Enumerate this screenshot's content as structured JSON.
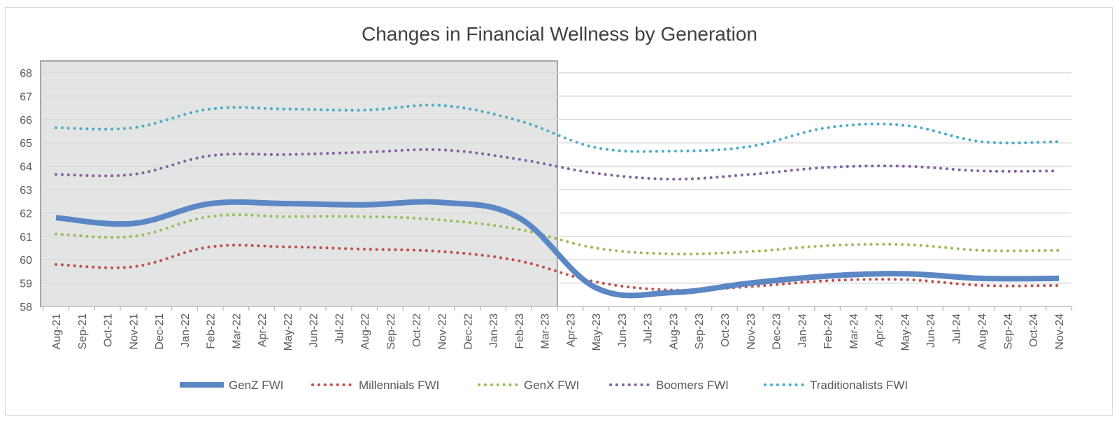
{
  "chart_data": {
    "type": "line",
    "title": "Changes in Financial Wellness by Generation",
    "xlabel": "",
    "ylabel": "",
    "ylim": [
      58,
      68
    ],
    "yticks": [
      58,
      59,
      60,
      61,
      62,
      63,
      64,
      65,
      66,
      67,
      68
    ],
    "grid": true,
    "legend_position": "bottom",
    "shaded_region": {
      "from": "Aug-21",
      "to": "Mar-23",
      "color": "#e3e5e4"
    },
    "categories": [
      "Aug-21",
      "Sep-21",
      "Oct-21",
      "Nov-21",
      "Dec-21",
      "Jan-22",
      "Feb-22",
      "Mar-22",
      "Apr-22",
      "May-22",
      "Jun-22",
      "Jul-22",
      "Aug-22",
      "Sep-22",
      "Oct-22",
      "Nov-22",
      "Dec-22",
      "Jan-23",
      "Feb-23",
      "Mar-23",
      "Apr-23",
      "May-23",
      "Jun-23",
      "Jul-23",
      "Aug-23",
      "Sep-23",
      "Oct-23",
      "Nov-23",
      "Dec-23",
      "Jan-24",
      "Feb-24",
      "Mar-24",
      "Apr-24",
      "May-24",
      "Jun-24",
      "Jul-24",
      "Aug-24",
      "Sep-24",
      "Oct-24",
      "Nov-24"
    ],
    "series": [
      {
        "name": "GenZ FWI",
        "color": "#5b87c5",
        "style": "solid",
        "points": [
          [
            "Aug-21",
            61.8
          ],
          [
            "Nov-21",
            61.55
          ],
          [
            "Feb-22",
            62.4
          ],
          [
            "May-22",
            62.4
          ],
          [
            "Aug-22",
            62.35
          ],
          [
            "Nov-22",
            62.45
          ],
          [
            "Feb-23",
            61.8
          ],
          [
            "May-23",
            58.8
          ],
          [
            "Aug-23",
            58.6
          ],
          [
            "Nov-23",
            59.0
          ],
          [
            "Feb-24",
            59.3
          ],
          [
            "May-24",
            59.4
          ],
          [
            "Aug-24",
            59.2
          ],
          [
            "Nov-24",
            59.2
          ]
        ]
      },
      {
        "name": "Millennials FWI",
        "color": "#c0504d",
        "style": "dotted",
        "points": [
          [
            "Aug-21",
            59.8
          ],
          [
            "Nov-21",
            59.7
          ],
          [
            "Feb-22",
            60.55
          ],
          [
            "May-22",
            60.55
          ],
          [
            "Aug-22",
            60.45
          ],
          [
            "Nov-22",
            60.35
          ],
          [
            "Feb-23",
            59.95
          ],
          [
            "May-23",
            59.05
          ],
          [
            "Aug-23",
            58.7
          ],
          [
            "Nov-23",
            58.85
          ],
          [
            "Feb-24",
            59.1
          ],
          [
            "May-24",
            59.15
          ],
          [
            "Aug-24",
            58.9
          ],
          [
            "Nov-24",
            58.9
          ]
        ]
      },
      {
        "name": "GenX FWI",
        "color": "#9bbb59",
        "style": "dotted",
        "points": [
          [
            "Aug-21",
            61.1
          ],
          [
            "Nov-21",
            61.0
          ],
          [
            "Feb-22",
            61.85
          ],
          [
            "May-22",
            61.85
          ],
          [
            "Aug-22",
            61.85
          ],
          [
            "Nov-22",
            61.7
          ],
          [
            "Feb-23",
            61.3
          ],
          [
            "May-23",
            60.5
          ],
          [
            "Aug-23",
            60.25
          ],
          [
            "Nov-23",
            60.35
          ],
          [
            "Feb-24",
            60.6
          ],
          [
            "May-24",
            60.65
          ],
          [
            "Aug-24",
            60.4
          ],
          [
            "Nov-24",
            60.4
          ]
        ]
      },
      {
        "name": "Boomers FWI",
        "color": "#8064a2",
        "style": "dotted",
        "points": [
          [
            "Aug-21",
            63.65
          ],
          [
            "Nov-21",
            63.65
          ],
          [
            "Feb-22",
            64.45
          ],
          [
            "May-22",
            64.5
          ],
          [
            "Aug-22",
            64.6
          ],
          [
            "Nov-22",
            64.7
          ],
          [
            "Feb-23",
            64.3
          ],
          [
            "May-23",
            63.7
          ],
          [
            "Aug-23",
            63.45
          ],
          [
            "Nov-23",
            63.65
          ],
          [
            "Feb-24",
            63.95
          ],
          [
            "May-24",
            64.0
          ],
          [
            "Aug-24",
            63.8
          ],
          [
            "Nov-24",
            63.8
          ]
        ]
      },
      {
        "name": "Traditionalists FWI",
        "color": "#4bacc6",
        "style": "dotted",
        "points": [
          [
            "Aug-21",
            65.65
          ],
          [
            "Nov-21",
            65.65
          ],
          [
            "Feb-22",
            66.45
          ],
          [
            "May-22",
            66.45
          ],
          [
            "Aug-22",
            66.4
          ],
          [
            "Nov-22",
            66.6
          ],
          [
            "Feb-23",
            65.95
          ],
          [
            "May-23",
            64.8
          ],
          [
            "Aug-23",
            64.65
          ],
          [
            "Nov-23",
            64.85
          ],
          [
            "Feb-24",
            65.65
          ],
          [
            "May-24",
            65.75
          ],
          [
            "Aug-24",
            65.05
          ],
          [
            "Nov-24",
            65.05
          ]
        ]
      }
    ]
  }
}
